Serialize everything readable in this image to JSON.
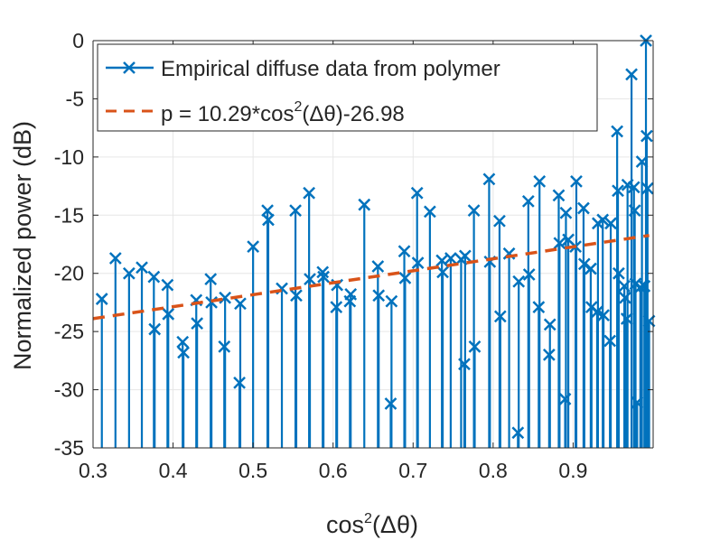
{
  "chart_data": {
    "type": "stem",
    "xlabel": "cos²(Δθ)",
    "xlabel_parts": {
      "pre": "cos",
      "sup": "2",
      "post": "(Δθ)"
    },
    "ylabel": "Normalized power (dB)",
    "xlim": [
      0.3,
      1.0
    ],
    "ylim": [
      -35,
      0
    ],
    "grid": true,
    "xticks": [
      0.3,
      0.4,
      0.5,
      0.6,
      0.7,
      0.8,
      0.9
    ],
    "xtick_labels": [
      "0.3",
      "0.4",
      "0.5",
      "0.6",
      "0.7",
      "0.8",
      "0.9"
    ],
    "yticks": [
      0,
      -5,
      -10,
      -15,
      -20,
      -25,
      -30,
      -35
    ],
    "ytick_labels": [
      "0",
      "-5",
      "-10",
      "-15",
      "-20",
      "-25",
      "-30",
      "-35"
    ],
    "legend_position": "top",
    "colors": {
      "empirical": "#0072BD",
      "fit": "#D95319",
      "grid": "#e6e6e6",
      "axis": "#262626"
    },
    "series": [
      {
        "name": "Empirical diffuse data from polymer",
        "marker": "x",
        "style": "stem",
        "points": [
          [
            0.311,
            -22.2
          ],
          [
            0.328,
            -18.7
          ],
          [
            0.345,
            -20.0
          ],
          [
            0.361,
            -19.5
          ],
          [
            0.376,
            -20.3
          ],
          [
            0.377,
            -24.8
          ],
          [
            0.393,
            -21.0
          ],
          [
            0.394,
            -23.5
          ],
          [
            0.412,
            -25.9
          ],
          [
            0.413,
            -26.8
          ],
          [
            0.429,
            -22.3
          ],
          [
            0.43,
            -24.3
          ],
          [
            0.447,
            -20.5
          ],
          [
            0.448,
            -22.5
          ],
          [
            0.464,
            -26.3
          ],
          [
            0.465,
            -22.1
          ],
          [
            0.483,
            -29.4
          ],
          [
            0.484,
            -22.6
          ],
          [
            0.5,
            -17.7
          ],
          [
            0.518,
            -14.6
          ],
          [
            0.519,
            -15.4
          ],
          [
            0.536,
            -21.3
          ],
          [
            0.553,
            -14.6
          ],
          [
            0.554,
            -21.9
          ],
          [
            0.57,
            -13.1
          ],
          [
            0.571,
            -20.5
          ],
          [
            0.587,
            -19.9
          ],
          [
            0.588,
            -20.3
          ],
          [
            0.604,
            -22.9
          ],
          [
            0.605,
            -21.0
          ],
          [
            0.621,
            -22.4
          ],
          [
            0.622,
            -21.8
          ],
          [
            0.639,
            -14.1
          ],
          [
            0.656,
            -19.4
          ],
          [
            0.657,
            -21.9
          ],
          [
            0.672,
            -31.2
          ],
          [
            0.673,
            -22.4
          ],
          [
            0.689,
            -18.1
          ],
          [
            0.69,
            -20.4
          ],
          [
            0.705,
            -13.1
          ],
          [
            0.706,
            -19.1
          ],
          [
            0.721,
            -14.7
          ],
          [
            0.736,
            -18.9
          ],
          [
            0.737,
            -19.9
          ],
          [
            0.747,
            -18.7
          ],
          [
            0.76,
            -18.8
          ],
          [
            0.764,
            -27.8
          ],
          [
            0.765,
            -18.5
          ],
          [
            0.776,
            -14.6
          ],
          [
            0.777,
            -26.3
          ],
          [
            0.795,
            -11.9
          ],
          [
            0.796,
            -19.0
          ],
          [
            0.808,
            -15.5
          ],
          [
            0.809,
            -23.7
          ],
          [
            0.82,
            -18.3
          ],
          [
            0.831,
            -33.7
          ],
          [
            0.832,
            -20.7
          ],
          [
            0.844,
            -13.8
          ],
          [
            0.845,
            -20.1
          ],
          [
            0.857,
            -22.9
          ],
          [
            0.858,
            -12.1
          ],
          [
            0.87,
            -27.0
          ],
          [
            0.871,
            -24.4
          ],
          [
            0.882,
            -13.3
          ],
          [
            0.883,
            -17.4
          ],
          [
            0.89,
            -30.8
          ],
          [
            0.891,
            -14.8
          ],
          [
            0.894,
            -17.1
          ],
          [
            0.903,
            -17.7
          ],
          [
            0.904,
            -12.1
          ],
          [
            0.913,
            -14.4
          ],
          [
            0.914,
            -19.2
          ],
          [
            0.922,
            -19.6
          ],
          [
            0.923,
            -22.9
          ],
          [
            0.93,
            -23.3
          ],
          [
            0.931,
            -15.7
          ],
          [
            0.937,
            -15.4
          ],
          [
            0.938,
            -23.6
          ],
          [
            0.946,
            -25.8
          ],
          [
            0.947,
            -15.7
          ],
          [
            0.955,
            -7.8
          ],
          [
            0.956,
            -12.9
          ],
          [
            0.957,
            -20.0
          ],
          [
            0.964,
            -21.1
          ],
          [
            0.965,
            -22.1
          ],
          [
            0.967,
            -23.9
          ],
          [
            0.968,
            -12.4
          ],
          [
            0.973,
            -2.9
          ],
          [
            0.976,
            -12.6
          ],
          [
            0.977,
            -14.6
          ],
          [
            0.978,
            -20.9
          ],
          [
            0.98,
            -31.1
          ],
          [
            0.984,
            -21.2
          ],
          [
            0.986,
            -10.4
          ],
          [
            0.989,
            -21.1
          ],
          [
            0.991,
            0.0
          ],
          [
            0.992,
            -8.2
          ],
          [
            0.993,
            -12.7
          ],
          [
            0.995,
            -24.1
          ]
        ]
      },
      {
        "name": "p = 10.29*cos²(Δθ)-26.98",
        "name_parts": {
          "pre": "p = 10.29*cos",
          "sup": "2",
          "post": "(Δθ)-26.98"
        },
        "style": "dashed",
        "fit": {
          "slope": 10.29,
          "intercept": -26.98
        },
        "x_range": [
          0.3,
          0.995
        ]
      }
    ]
  }
}
